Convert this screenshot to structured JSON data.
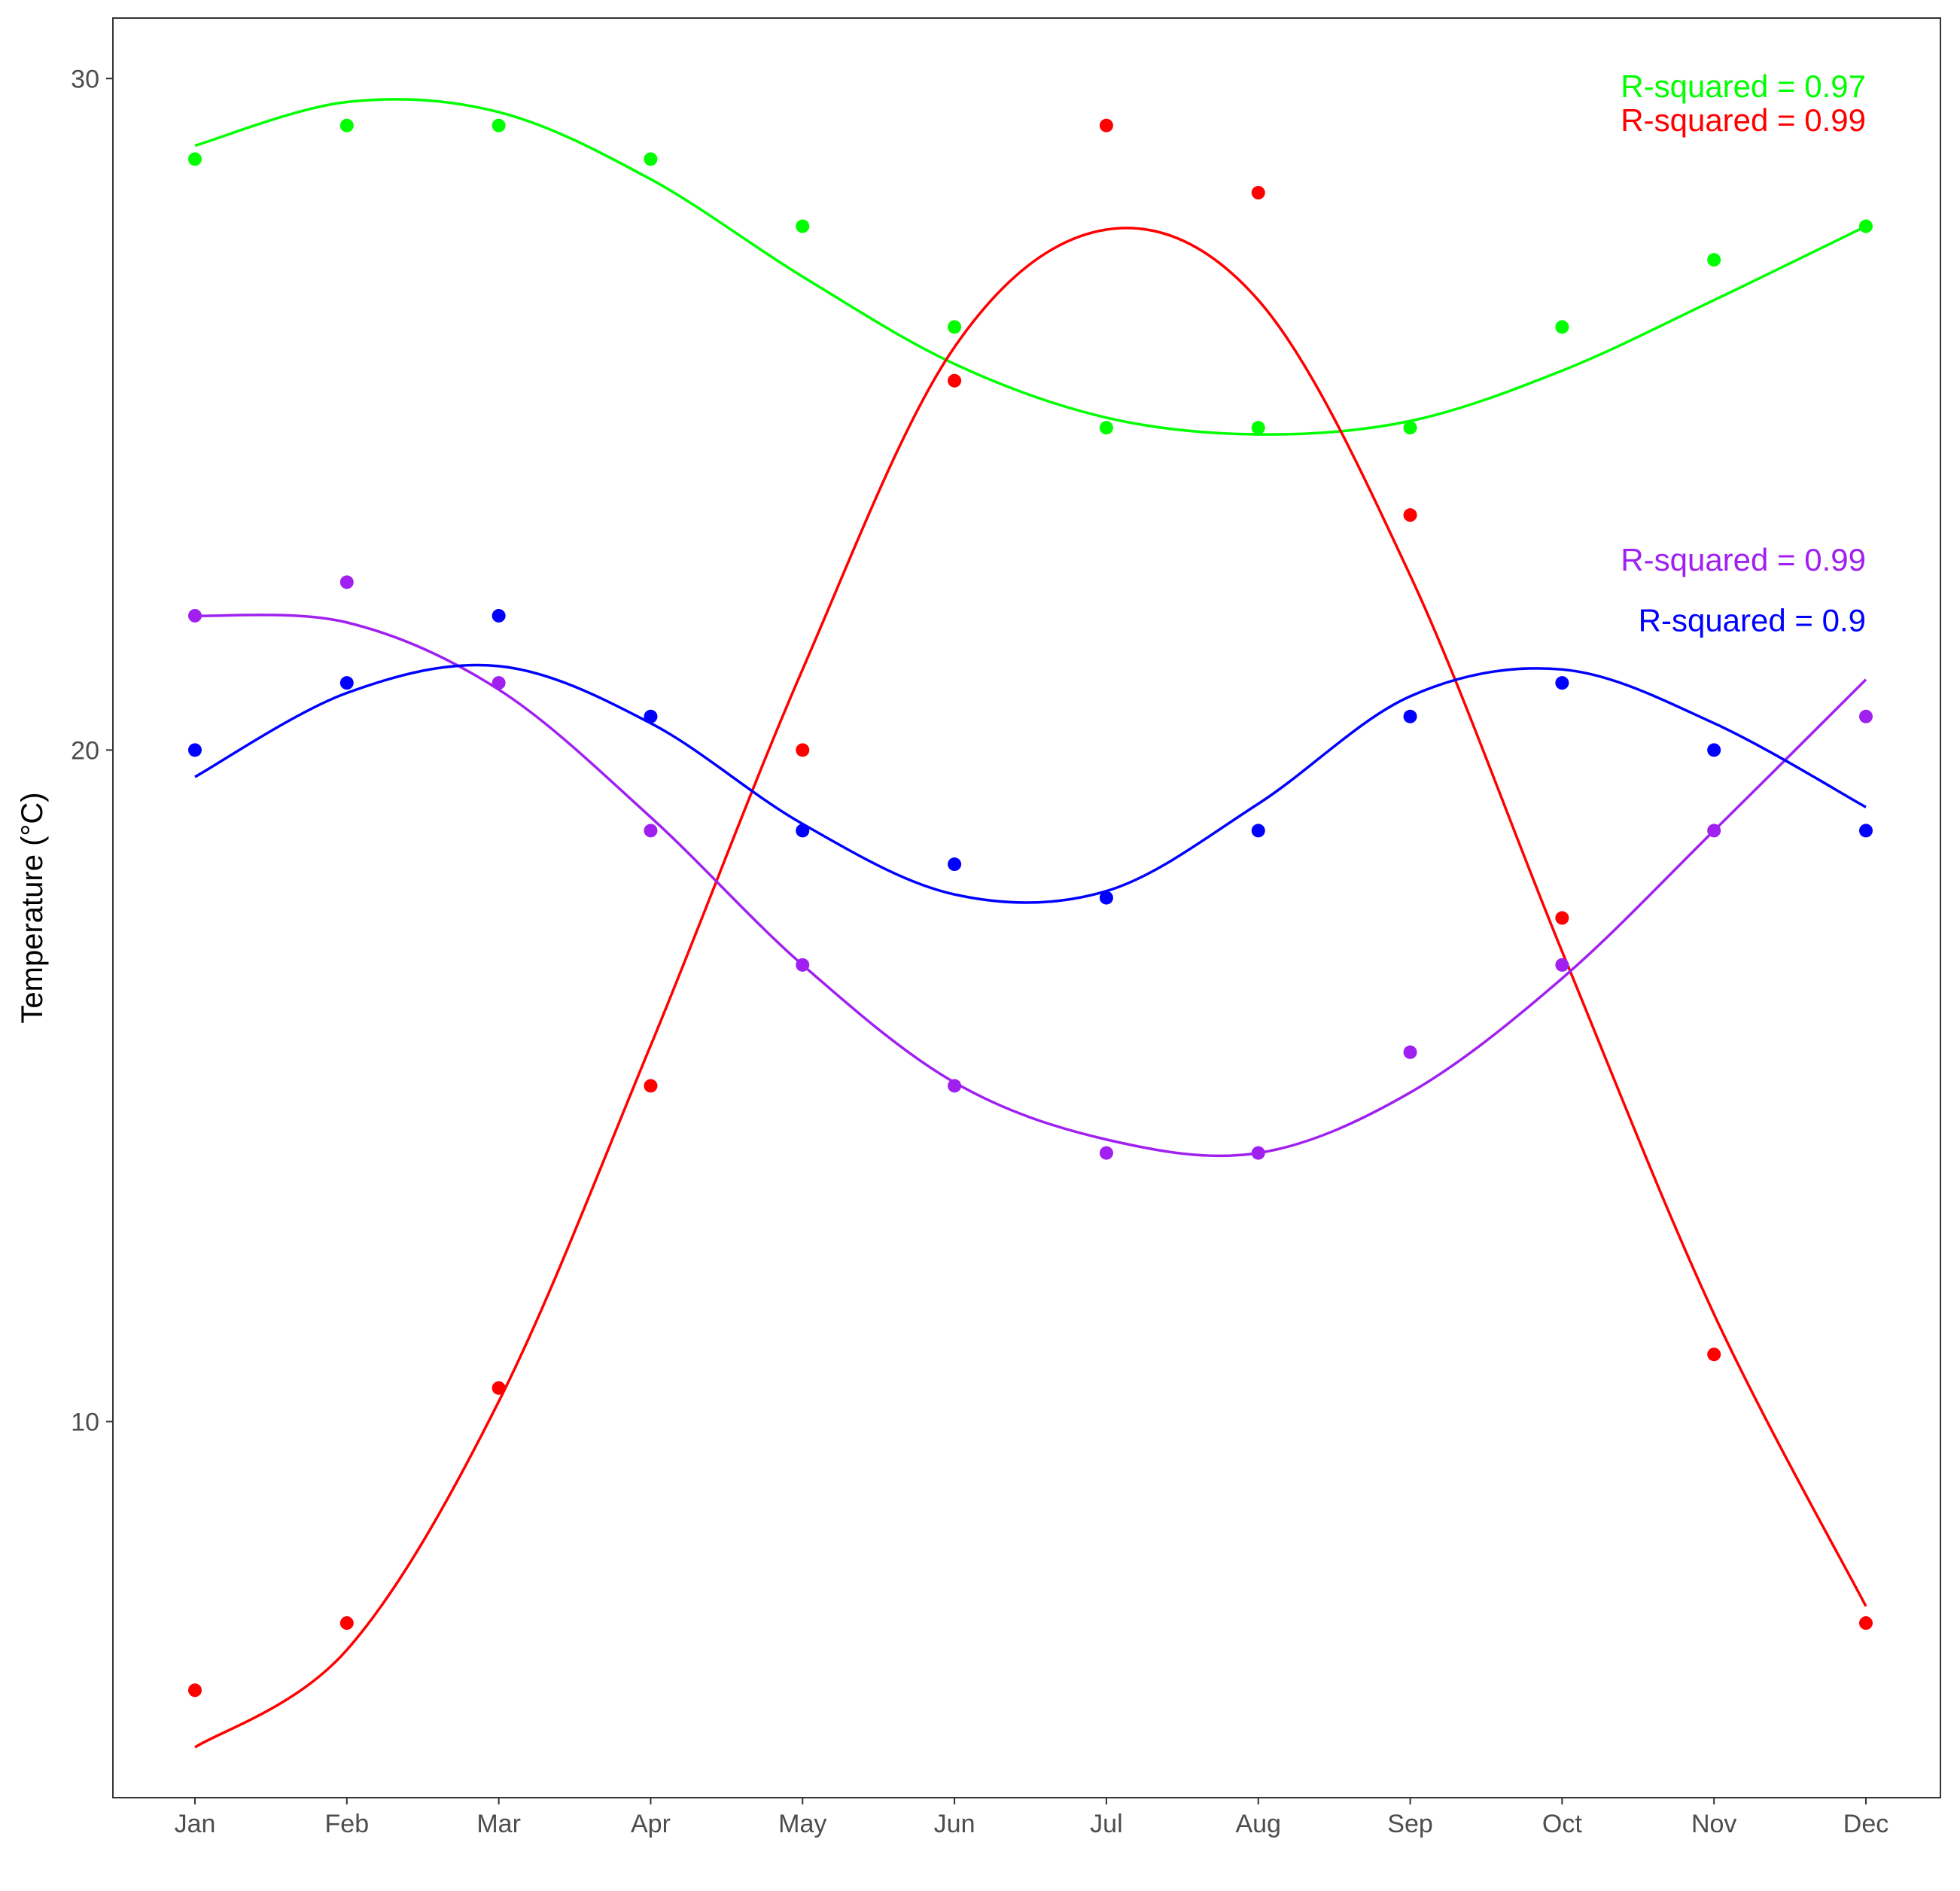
{
  "chart_data": {
    "type": "scatter",
    "title": "",
    "xlabel": "",
    "ylabel": "Temperature (°C)",
    "categories": [
      "Jan",
      "Feb",
      "Mar",
      "Apr",
      "May",
      "Jun",
      "Jul",
      "Aug",
      "Sep",
      "Oct",
      "Nov",
      "Dec"
    ],
    "yticks": [
      10,
      20,
      30
    ],
    "ylim": [
      4.4,
      30.9
    ],
    "grid": false,
    "legend": "none",
    "series": [
      {
        "color": "#00ff00",
        "values": [
          28.8,
          29.3,
          29.3,
          28.8,
          27.8,
          26.3,
          24.8,
          24.8,
          24.8,
          26.3,
          27.3,
          27.8
        ],
        "fit": [
          29.0,
          29.65,
          29.5,
          28.5,
          27.05,
          25.75,
          24.95,
          24.7,
          24.9,
          25.65,
          26.7,
          27.8
        ]
      },
      {
        "color": "#ff0000",
        "values": [
          6.0,
          7.0,
          10.5,
          15.0,
          20.0,
          25.5,
          29.3,
          28.3,
          23.5,
          17.5,
          11.0,
          7.0
        ],
        "fit": [
          5.15,
          6.6,
          10.3,
          15.6,
          21.2,
          26.0,
          27.75,
          26.7,
          22.6,
          17.0,
          11.6,
          7.25
        ]
      },
      {
        "color": "#a020f0",
        "values": [
          22.0,
          22.5,
          21.0,
          18.8,
          16.8,
          15.0,
          14.0,
          14.0,
          15.5,
          16.8,
          18.8,
          20.5
        ],
        "fit": [
          22.0,
          21.9,
          20.9,
          19.0,
          16.8,
          15.05,
          14.2,
          14.0,
          14.9,
          16.6,
          18.8,
          21.05
        ]
      },
      {
        "color": "#0000ff",
        "values": [
          20.0,
          21.0,
          22.0,
          20.5,
          18.8,
          18.3,
          17.8,
          18.8,
          20.5,
          21.0,
          20.0,
          18.8
        ],
        "fit": [
          19.6,
          20.85,
          21.25,
          20.4,
          18.9,
          17.85,
          17.9,
          19.2,
          20.8,
          21.2,
          20.4,
          19.15
        ]
      }
    ],
    "annotations": [
      {
        "text": "R-squared = 0.97",
        "color": "#00ff00"
      },
      {
        "text": "R-squared = 0.99",
        "color": "#ff0000"
      },
      {
        "text": "R-squared = 0.99",
        "color": "#a020f0"
      },
      {
        "text": "R-squared = 0.9",
        "color": "#0000ff"
      }
    ]
  }
}
